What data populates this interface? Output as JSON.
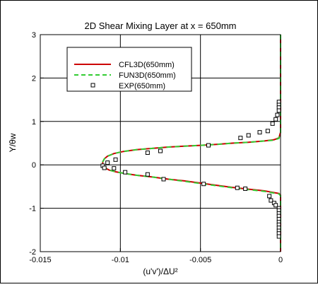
{
  "chart_data": {
    "type": "line",
    "title": "2D Shear Mixing Layer at x = 650mm",
    "xlabel": "(u'v')/ΔU²",
    "ylabel": "Y/θw",
    "xlim": [
      -0.015,
      0
    ],
    "ylim": [
      -2,
      3
    ],
    "xticks": [
      -0.015,
      -0.01,
      -0.005,
      0
    ],
    "xtick_labels": [
      "-0.015",
      "-0.01",
      "-0.005",
      "0"
    ],
    "yticks": [
      -2,
      -1,
      0,
      1,
      2,
      3
    ],
    "ytick_labels": [
      "-2",
      "-1",
      "0",
      "1",
      "2",
      "3"
    ],
    "grid": true,
    "legend_position": "top-left",
    "series": [
      {
        "name": "CFL3D(650mm)",
        "style": "solid",
        "color": "#cc0000",
        "x": [
          0,
          0,
          -0.0001,
          -0.0004,
          -0.001,
          -0.002,
          -0.003,
          -0.004,
          -0.005,
          -0.006,
          -0.007,
          -0.008,
          -0.009,
          -0.0098,
          -0.0104,
          -0.0108,
          -0.011,
          -0.0111,
          -0.0111,
          -0.011,
          -0.0107,
          -0.0103,
          -0.0097,
          -0.009,
          -0.008,
          -0.007,
          -0.006,
          -0.005,
          -0.004,
          -0.003,
          -0.002,
          -0.001,
          -0.0004,
          -0.0001,
          0,
          0
        ],
        "y": [
          3.0,
          0.75,
          0.62,
          0.58,
          0.55,
          0.52,
          0.5,
          0.47,
          0.45,
          0.43,
          0.41,
          0.38,
          0.35,
          0.31,
          0.26,
          0.2,
          0.14,
          0.07,
          0.0,
          -0.06,
          -0.12,
          -0.16,
          -0.2,
          -0.24,
          -0.28,
          -0.33,
          -0.37,
          -0.42,
          -0.47,
          -0.52,
          -0.56,
          -0.6,
          -0.64,
          -0.66,
          -0.7,
          -2.0
        ]
      },
      {
        "name": "FUN3D(650mm)",
        "style": "dashed",
        "color": "#33cc33",
        "x": [
          0,
          0,
          -0.0001,
          -0.0004,
          -0.001,
          -0.002,
          -0.003,
          -0.004,
          -0.005,
          -0.006,
          -0.007,
          -0.008,
          -0.009,
          -0.0098,
          -0.0104,
          -0.0108,
          -0.011,
          -0.0111,
          -0.0111,
          -0.011,
          -0.0107,
          -0.0103,
          -0.0097,
          -0.009,
          -0.008,
          -0.007,
          -0.006,
          -0.005,
          -0.004,
          -0.003,
          -0.002,
          -0.001,
          -0.0004,
          -0.0001,
          0,
          0
        ],
        "y": [
          3.0,
          0.74,
          0.61,
          0.57,
          0.55,
          0.52,
          0.5,
          0.47,
          0.45,
          0.43,
          0.41,
          0.38,
          0.35,
          0.31,
          0.26,
          0.2,
          0.14,
          0.07,
          0.0,
          -0.06,
          -0.12,
          -0.16,
          -0.2,
          -0.24,
          -0.28,
          -0.33,
          -0.38,
          -0.43,
          -0.48,
          -0.53,
          -0.57,
          -0.61,
          -0.65,
          -0.67,
          -0.71,
          -2.0
        ]
      },
      {
        "name": "EXP(650mm)",
        "style": "markers",
        "marker": "square",
        "color": "#000000",
        "x": [
          -0.0001,
          -0.0001,
          -0.0001,
          -0.0001,
          -0.0002,
          -0.0003,
          -0.0005,
          -0.0008,
          -0.0013,
          -0.002,
          -0.0025,
          -0.0045,
          -0.0075,
          -0.0083,
          -0.0103,
          -0.0108,
          -0.0111,
          -0.011,
          -0.0104,
          -0.0097,
          -0.0083,
          -0.0073,
          -0.0048,
          -0.0027,
          -0.0022,
          -0.0007,
          -0.0006,
          -0.0004,
          -0.0003,
          -0.0001,
          -0.0001,
          -0.0001,
          -0.0001,
          -0.0001,
          -0.0001,
          -0.0001,
          -0.0001,
          -0.0001,
          -0.0001,
          -0.0001
        ],
        "y": [
          1.45,
          1.38,
          1.32,
          1.25,
          1.15,
          1.05,
          0.95,
          0.78,
          0.75,
          0.68,
          0.62,
          0.45,
          0.32,
          0.28,
          0.12,
          0.05,
          -0.02,
          -0.07,
          -0.08,
          -0.17,
          -0.22,
          -0.33,
          -0.44,
          -0.53,
          -0.55,
          -0.72,
          -0.82,
          -0.88,
          -0.93,
          -1.0,
          -1.05,
          -1.12,
          -1.18,
          -1.25,
          -1.32,
          -1.38,
          -1.45,
          -1.52,
          -1.58,
          -1.65
        ]
      }
    ]
  }
}
